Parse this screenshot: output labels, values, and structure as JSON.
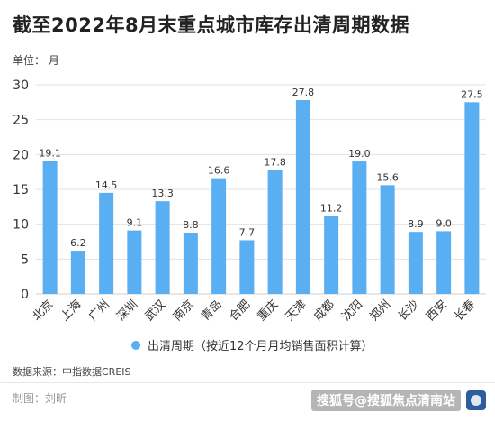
{
  "header": {
    "title": "截至2022年8月末重点城市库存出清周期数据",
    "unit_label": "单位：  月"
  },
  "chart_data": {
    "type": "bar",
    "categories": [
      "北京",
      "上海",
      "广州",
      "深圳",
      "武汉",
      "南京",
      "青岛",
      "合肥",
      "重庆",
      "天津",
      "成都",
      "沈阳",
      "郑州",
      "长沙",
      "西安",
      "长春"
    ],
    "series": [
      {
        "name": "出清周期（按近12个月月均销售面积计算）",
        "values": [
          19.1,
          6.2,
          14.5,
          9.1,
          13.3,
          8.8,
          16.6,
          7.7,
          17.8,
          27.8,
          11.2,
          19.0,
          15.6,
          8.9,
          9.0,
          27.5
        ],
        "value_labels": [
          "19.1",
          "6.2",
          "14.5",
          "9.1",
          "13.3",
          "8.8",
          "16.6",
          "7.7",
          "17.8",
          "27.8",
          "11.2",
          "19.0",
          "15.6",
          "8.9",
          "9.0",
          "27.5"
        ]
      }
    ],
    "ylim": [
      0,
      30
    ],
    "yticks": [
      0,
      5,
      10,
      15,
      20,
      25,
      30
    ],
    "grid": true,
    "legend_position": "bottom",
    "colors": {
      "bar": "#5aaef2",
      "grid": "#e3e3e3",
      "axis": "#cfcfcf"
    }
  },
  "footer": {
    "source": "数据来源：中指数据CREIS",
    "maker": "制图：刘昕",
    "watermark": "搜狐号@搜狐焦点清南站",
    "watermark_logo_color": "#2d5d9f"
  }
}
